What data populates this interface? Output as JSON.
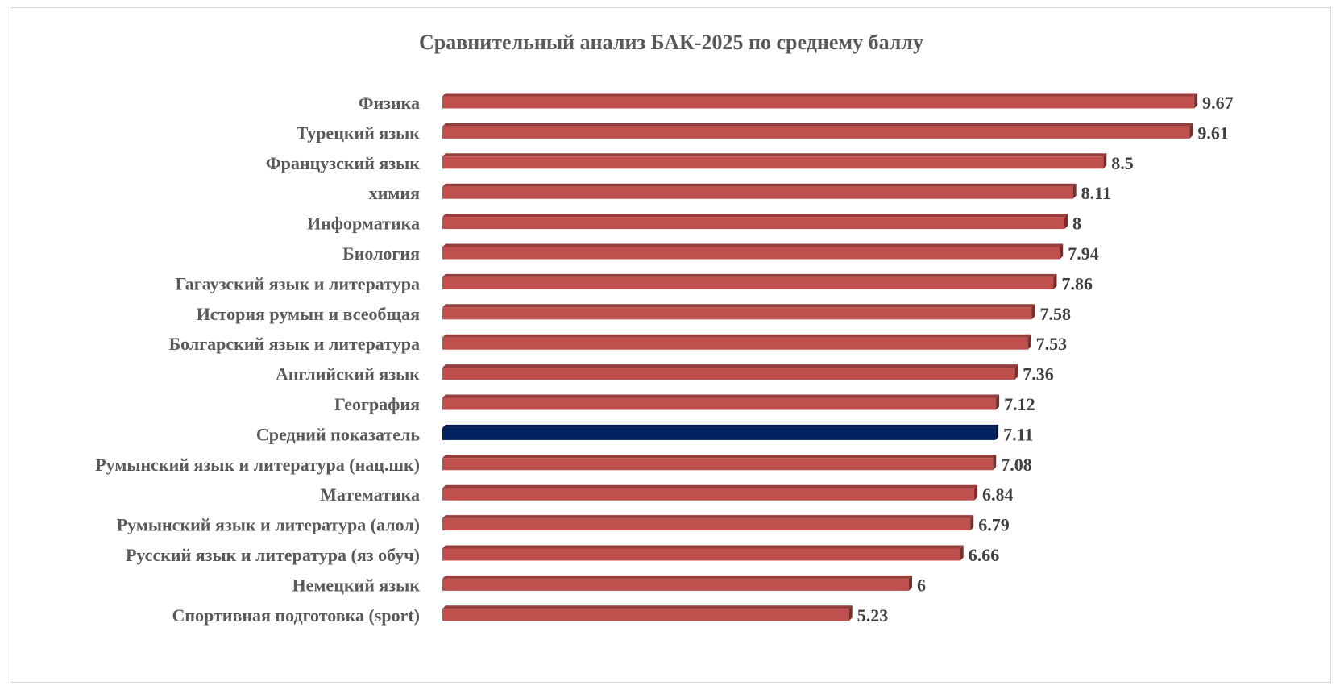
{
  "chart_data": {
    "type": "bar",
    "orientation": "horizontal",
    "title": "Сравнительный анализ БАК-2025 по среднему баллу",
    "categories": [
      "Физика",
      "Турецкий язык",
      "Французский язык",
      "химия",
      "Информатика",
      "Биология",
      "Гагаузский язык и литература",
      "История румын и всеобщая",
      "Болгарский язык и литература",
      "Английский язык",
      "География",
      "Средний показатель",
      "Румынский язык и литература (нац.шк)",
      "Математика",
      "Румынский язык и литература (алол)",
      "Русский язык и литература (яз обуч)",
      "Немецкий язык",
      "Спортивная подготовка (sport)"
    ],
    "values": [
      9.67,
      9.61,
      8.5,
      8.11,
      8,
      7.94,
      7.86,
      7.58,
      7.53,
      7.36,
      7.12,
      7.11,
      7.08,
      6.84,
      6.79,
      6.66,
      6,
      5.23
    ],
    "value_labels": [
      "9.67",
      "9.61",
      "8.5",
      "8.11",
      "8",
      "7.94",
      "7.86",
      "7.58",
      "7.53",
      "7.36",
      "7.12",
      "7.11",
      "7.08",
      "6.84",
      "6.79",
      "6.66",
      "6",
      "5.23"
    ],
    "highlight_index": 11,
    "colors": {
      "bar": "#c0504d",
      "highlight": "#002060"
    },
    "xlim": [
      0,
      10
    ],
    "grid": false,
    "legend": "none",
    "axes_visible": false,
    "style": "3d-bars"
  }
}
